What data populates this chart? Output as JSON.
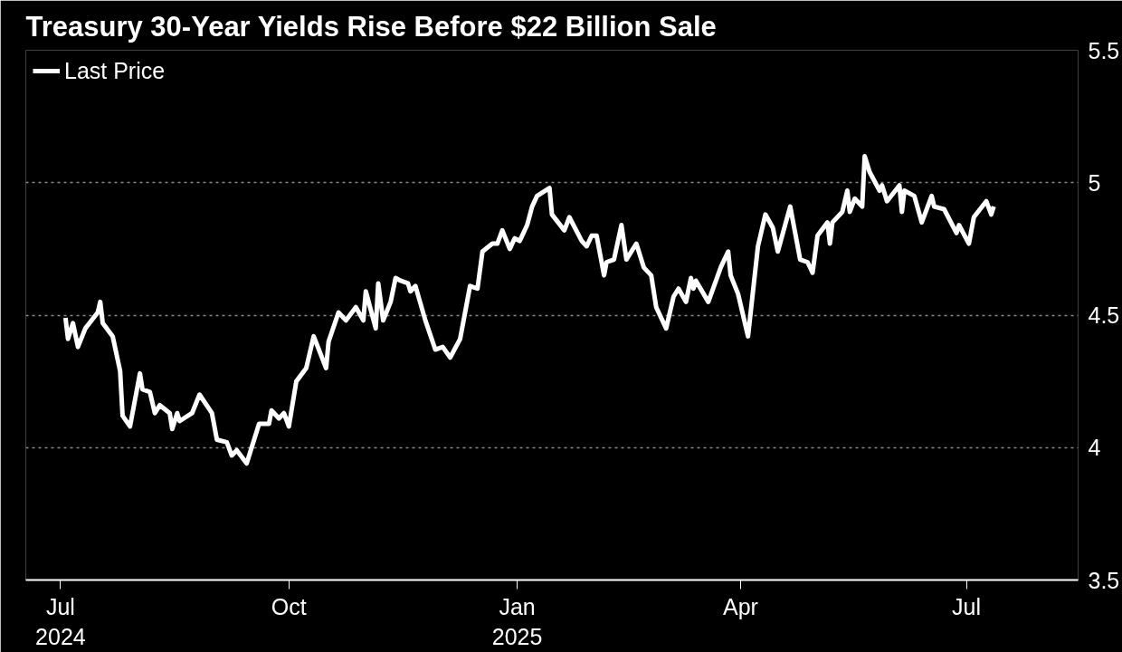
{
  "chart_data": {
    "type": "line",
    "title": "Treasury 30-Year Yields Rise Before $22 Billion Sale",
    "x": [
      "2024-07-03",
      "2024-07-04",
      "2024-07-06",
      "2024-07-08",
      "2024-07-11",
      "2024-07-16",
      "2024-07-17",
      "2024-07-18",
      "2024-07-22",
      "2024-07-25",
      "2024-07-26",
      "2024-07-29",
      "2024-08-02",
      "2024-08-03",
      "2024-08-06",
      "2024-08-08",
      "2024-08-10",
      "2024-08-14",
      "2024-08-15",
      "2024-08-17",
      "2024-08-18",
      "2024-08-23",
      "2024-08-26",
      "2024-08-31",
      "2024-09-02",
      "2024-09-06",
      "2024-09-08",
      "2024-09-10",
      "2024-09-14",
      "2024-09-19",
      "2024-09-23",
      "2024-09-24",
      "2024-09-27",
      "2024-09-29",
      "2024-10-01",
      "2024-10-04",
      "2024-10-08",
      "2024-10-11",
      "2024-10-16",
      "2024-10-17",
      "2024-10-21",
      "2024-10-24",
      "2024-10-28",
      "2024-10-31",
      "2024-11-01",
      "2024-11-05",
      "2024-11-06",
      "2024-11-08",
      "2024-11-11",
      "2024-11-13",
      "2024-11-15",
      "2024-11-18",
      "2024-11-19",
      "2024-11-21",
      "2024-11-25",
      "2024-11-29",
      "2024-12-02",
      "2024-12-05",
      "2024-12-09",
      "2024-12-13",
      "2024-12-16",
      "2024-12-18",
      "2024-12-22",
      "2024-12-24",
      "2024-12-26",
      "2024-12-29",
      "2024-12-31",
      "2025-01-02",
      "2025-01-05",
      "2025-01-07",
      "2025-01-09",
      "2025-01-14",
      "2025-01-15",
      "2025-01-20",
      "2025-01-22",
      "2025-01-27",
      "2025-01-29",
      "2025-01-31",
      "2025-02-02",
      "2025-02-05",
      "2025-02-06",
      "2025-02-09",
      "2025-02-12",
      "2025-02-14",
      "2025-02-18",
      "2025-02-21",
      "2025-02-24",
      "2025-02-26",
      "2025-03-02",
      "2025-03-05",
      "2025-03-07",
      "2025-03-10",
      "2025-03-12",
      "2025-03-13",
      "2025-03-14",
      "2025-03-19",
      "2025-03-24",
      "2025-03-27",
      "2025-03-28",
      "2025-03-31",
      "2025-04-04",
      "2025-04-08",
      "2025-04-11",
      "2025-04-14",
      "2025-04-16",
      "2025-04-21",
      "2025-04-25",
      "2025-04-28",
      "2025-04-30",
      "2025-05-02",
      "2025-05-06",
      "2025-05-07",
      "2025-05-08",
      "2025-05-12",
      "2025-05-14",
      "2025-05-15",
      "2025-05-17",
      "2025-05-20",
      "2025-05-21",
      "2025-05-23",
      "2025-05-27",
      "2025-05-28",
      "2025-05-30",
      "2025-06-04",
      "2025-06-05",
      "2025-06-06",
      "2025-06-10",
      "2025-06-13",
      "2025-06-17",
      "2025-06-18",
      "2025-06-22",
      "2025-06-27",
      "2025-06-28",
      "2025-07-02",
      "2025-07-04",
      "2025-07-09",
      "2025-07-11",
      "2025-07-12"
    ],
    "series": [
      {
        "name": "Last Price",
        "color": "#ffffff",
        "values": [
          4.49,
          4.41,
          4.47,
          4.38,
          4.45,
          4.51,
          4.55,
          4.47,
          4.42,
          4.29,
          4.12,
          4.08,
          4.28,
          4.22,
          4.21,
          4.13,
          4.16,
          4.13,
          4.07,
          4.13,
          4.1,
          4.13,
          4.2,
          4.13,
          4.03,
          4.02,
          3.97,
          3.99,
          3.94,
          4.09,
          4.09,
          4.14,
          4.11,
          4.13,
          4.08,
          4.25,
          4.3,
          4.42,
          4.3,
          4.4,
          4.51,
          4.48,
          4.53,
          4.48,
          4.59,
          4.45,
          4.62,
          4.48,
          4.55,
          4.64,
          4.63,
          4.62,
          4.59,
          4.61,
          4.48,
          4.37,
          4.38,
          4.34,
          4.41,
          4.61,
          4.6,
          4.74,
          4.77,
          4.77,
          4.82,
          4.75,
          4.79,
          4.78,
          4.84,
          4.91,
          4.95,
          4.98,
          4.88,
          4.82,
          4.87,
          4.78,
          4.76,
          4.8,
          4.8,
          4.65,
          4.7,
          4.71,
          4.84,
          4.71,
          4.77,
          4.68,
          4.65,
          4.53,
          4.45,
          4.57,
          4.6,
          4.55,
          4.64,
          4.6,
          4.63,
          4.55,
          4.68,
          4.74,
          4.65,
          4.58,
          4.42,
          4.76,
          4.88,
          4.83,
          4.74,
          4.91,
          4.71,
          4.7,
          4.66,
          4.8,
          4.85,
          4.77,
          4.85,
          4.89,
          4.97,
          4.89,
          4.94,
          4.91,
          5.1,
          5.04,
          4.97,
          4.99,
          4.93,
          4.99,
          4.89,
          4.97,
          4.95,
          4.85,
          4.95,
          4.91,
          4.9,
          4.81,
          4.84,
          4.77,
          4.87,
          4.93,
          4.88,
          4.91
        ]
      }
    ],
    "xlim": [
      "2024-06-17",
      "2025-08-15"
    ],
    "xticks": [
      {
        "value": "2024-07-01",
        "label": "Jul\n2024"
      },
      {
        "value": "2024-10-01",
        "label": "Oct"
      },
      {
        "value": "2025-01-01",
        "label": "Jan\n2025"
      },
      {
        "value": "2025-04-01",
        "label": "Apr"
      },
      {
        "value": "2025-07-01",
        "label": "Jul"
      }
    ],
    "ylim": [
      3.5,
      5.5
    ],
    "yticks": [
      3.5,
      4,
      4.5,
      5,
      5.5
    ],
    "grid": "y",
    "legend": "top left",
    "marker": "none",
    "line_style": "solid"
  }
}
